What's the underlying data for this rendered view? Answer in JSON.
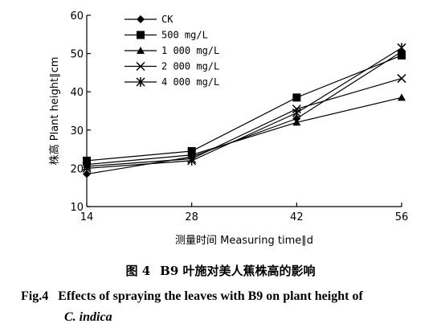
{
  "chart_data": {
    "type": "line",
    "xlabel": "测量时间 Measuring time∥d",
    "ylabel": "株高 Plant height∥cm",
    "x": [
      14,
      28,
      42,
      56
    ],
    "xticks": [
      "14",
      "28",
      "42",
      "56"
    ],
    "yticks": [
      "10",
      "20",
      "30",
      "40",
      "50",
      "60"
    ],
    "xlim": [
      14,
      56
    ],
    "ylim": [
      10,
      60
    ],
    "grid": false,
    "legend_position": "top-left",
    "series": [
      {
        "name": "CK",
        "marker": "diamond",
        "values": [
          18.5,
          23.0,
          33.0,
          50.5
        ]
      },
      {
        "name": "500 mg/L",
        "marker": "square",
        "values": [
          22.0,
          24.5,
          38.5,
          49.5
        ]
      },
      {
        "name": "1 000 mg/L",
        "marker": "triangle",
        "values": [
          21.0,
          23.5,
          32.0,
          38.5
        ]
      },
      {
        "name": "2 000 mg/L",
        "marker": "x",
        "values": [
          20.5,
          22.5,
          35.5,
          43.5
        ]
      },
      {
        "name": "4 000 mg/L",
        "marker": "asterisk",
        "values": [
          20.0,
          22.0,
          34.5,
          51.5
        ]
      }
    ]
  },
  "caption": {
    "cn_label": "图 4",
    "cn_text": "B9 叶施对美人蕉株高的影响",
    "en_label": "Fig.4",
    "en_text": "Effects of spraying the leaves with B9 on plant height of",
    "en_species": "C. indica"
  }
}
